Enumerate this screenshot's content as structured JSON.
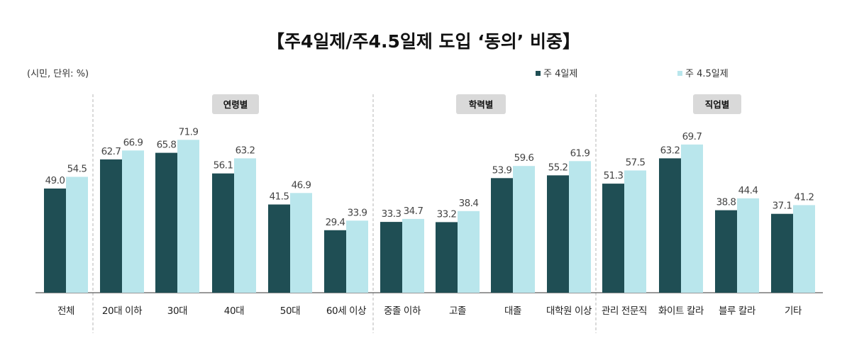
{
  "chart_data": {
    "type": "bar",
    "title": "【주4일제/주4.5일제 도입 ‘동의’ 비중】",
    "unit_note": "(시민, 단위: %)",
    "groups": [
      {
        "label": "연령별",
        "categories": [
          "20대 이하",
          "30대",
          "40대",
          "50대",
          "60세 이상"
        ]
      },
      {
        "label": "학력별",
        "categories": [
          "중졸 이하",
          "고졸",
          "대졸",
          "대학원 이상"
        ]
      },
      {
        "label": "직업별",
        "categories": [
          "관리 전문직",
          "화이트 칼라",
          "블루 칼라",
          "기타"
        ]
      }
    ],
    "categories": [
      "전체",
      "20대 이하",
      "30대",
      "40대",
      "50대",
      "60세 이상",
      "중졸 이하",
      "고졸",
      "대졸",
      "대학원 이상",
      "관리 전문직",
      "화이트 칼라",
      "블루 칼라",
      "기타"
    ],
    "series": [
      {
        "name": "주 4일제",
        "color": "#1f4e54",
        "values": [
          49.0,
          62.7,
          65.8,
          56.1,
          41.5,
          29.4,
          33.3,
          33.2,
          53.9,
          55.2,
          51.3,
          63.2,
          38.8,
          37.1
        ]
      },
      {
        "name": "주 4.5일제",
        "color": "#b9e6ec",
        "values": [
          54.5,
          66.9,
          71.9,
          63.2,
          46.9,
          33.9,
          34.7,
          38.4,
          59.6,
          61.9,
          57.5,
          69.7,
          44.4,
          41.2
        ]
      }
    ],
    "ylim": [
      0,
      80
    ],
    "grid": false,
    "legend_position": "top-right"
  }
}
